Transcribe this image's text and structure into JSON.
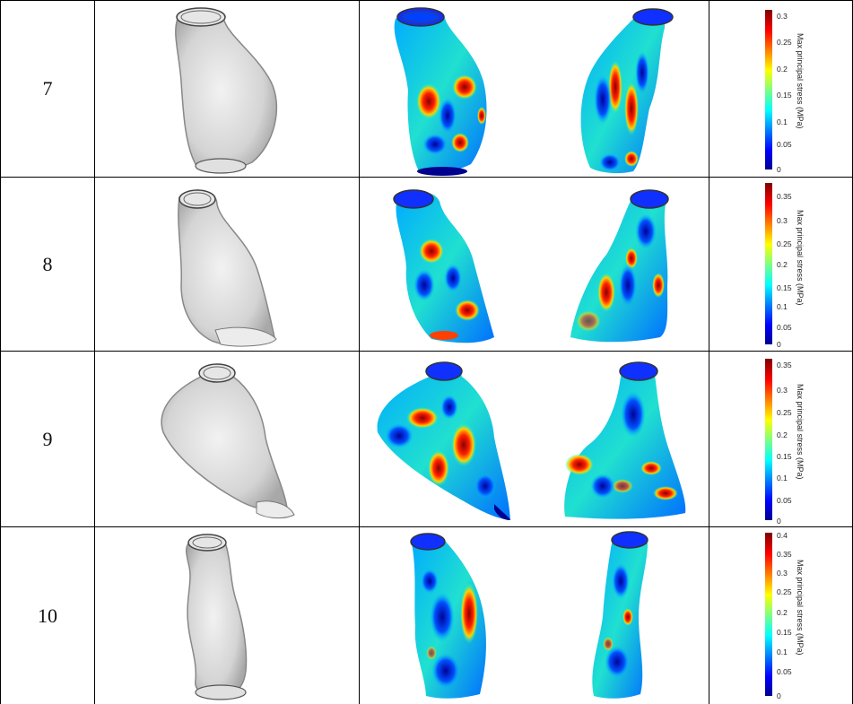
{
  "rows": [
    {
      "label": "7",
      "colorbar": {
        "ticks": [
          "0.3",
          "0.25",
          "0.2",
          "0.15",
          "0.1",
          "0.05",
          "0"
        ],
        "title": "Max principal stress (MPa)"
      }
    },
    {
      "label": "8",
      "colorbar": {
        "ticks": [
          "0.35",
          "0.3",
          "0.25",
          "0.2",
          "0.15",
          "0.1",
          "0.05",
          "0"
        ],
        "title": "Max principal stress (MPa)"
      }
    },
    {
      "label": "9",
      "colorbar": {
        "ticks": [
          "0.35",
          "0.3",
          "0.25",
          "0.2",
          "0.15",
          "0.1",
          "0.05",
          "0"
        ],
        "title": "Max principal stress (MPa)"
      }
    },
    {
      "label": "10",
      "colorbar": {
        "ticks": [
          "0.4",
          "0.35",
          "0.3",
          "0.25",
          "0.2",
          "0.15",
          "0.1",
          "0.05",
          "0"
        ],
        "title": "Max principal stress (MPa)"
      }
    }
  ],
  "colors": {
    "jet_low": "#00008f",
    "jet_high": "#800000",
    "gray_model": "#d6d6d6"
  }
}
